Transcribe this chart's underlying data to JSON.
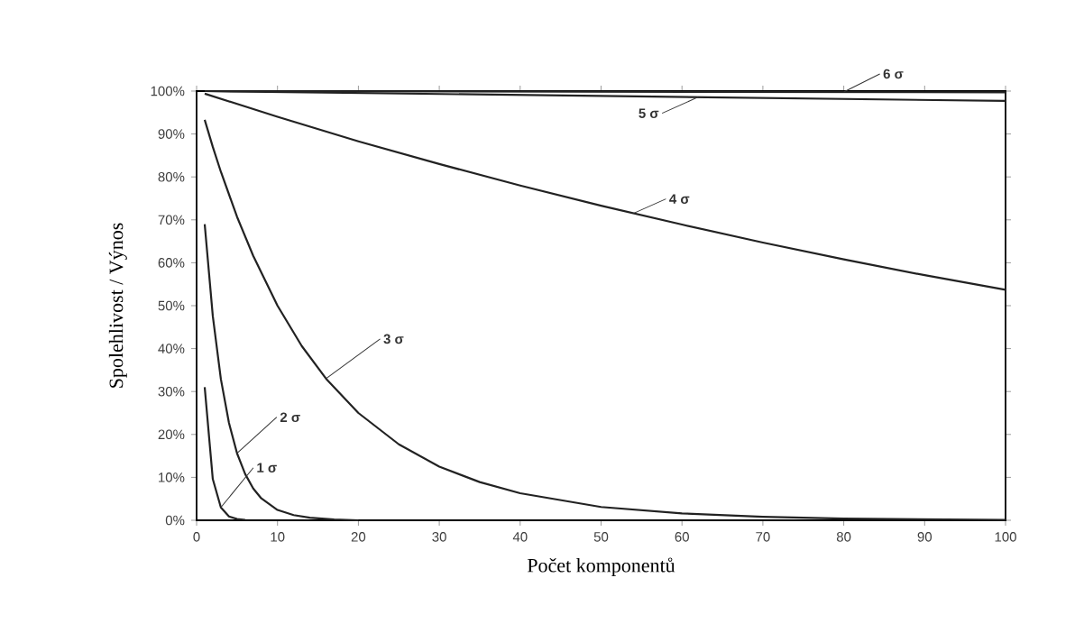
{
  "chart_data": {
    "type": "line",
    "xlabel": "Počet komponentů",
    "ylabel": "Spolehlivost / Výnos",
    "xlim": [
      0,
      100
    ],
    "ylim": [
      0,
      100
    ],
    "xticks": [
      0,
      10,
      20,
      30,
      40,
      50,
      60,
      70,
      80,
      90,
      100
    ],
    "yticks": [
      {
        "value": 0,
        "label": "0%"
      },
      {
        "value": 10,
        "label": "10%"
      },
      {
        "value": 20,
        "label": "20%"
      },
      {
        "value": 30,
        "label": "30%"
      },
      {
        "value": 40,
        "label": "40%"
      },
      {
        "value": 50,
        "label": "50%"
      },
      {
        "value": 60,
        "label": "60%"
      },
      {
        "value": 70,
        "label": "70%"
      },
      {
        "value": 80,
        "label": "80%"
      },
      {
        "value": 90,
        "label": "90%"
      },
      {
        "value": 100,
        "label": "100%"
      }
    ],
    "marker": "none",
    "line_style": "solid",
    "series": [
      {
        "color": "#222222",
        "x": [
          1,
          2,
          3,
          4,
          5,
          6
        ],
        "values": [
          31,
          9.6,
          3.0,
          0.9,
          0.3,
          0.1
        ]
      },
      {
        "color": "#222222",
        "x": [
          1,
          2,
          3,
          4,
          5,
          6,
          7,
          8,
          10,
          12,
          14,
          17,
          20
        ],
        "values": [
          69,
          47.6,
          32.9,
          22.7,
          15.6,
          10.8,
          7.4,
          5.1,
          2.4,
          1.2,
          0.6,
          0.2,
          0
        ]
      },
      {
        "color": "#222222",
        "x": [
          1,
          2,
          3,
          5,
          7,
          10,
          13,
          16,
          20,
          25,
          30,
          35,
          40,
          50,
          60,
          70,
          80,
          100
        ],
        "values": [
          93.3,
          87.0,
          81.2,
          70.7,
          61.6,
          50.0,
          40.6,
          33.0,
          25.0,
          17.7,
          12.5,
          8.9,
          6.3,
          3.1,
          1.6,
          0.8,
          0.4,
          0.1
        ]
      },
      {
        "color": "#222222",
        "x": [
          1,
          10,
          20,
          30,
          40,
          50,
          60,
          70,
          80,
          90,
          100
        ],
        "values": [
          99.4,
          94,
          88.3,
          83,
          78,
          73.3,
          68.9,
          64.7,
          60.8,
          57.1,
          53.7
        ]
      },
      {
        "color": "#222222",
        "x": [
          1,
          100
        ],
        "values": [
          100,
          97.7
        ]
      },
      {
        "color": "#222222",
        "x": [
          1,
          100
        ],
        "values": [
          100,
          99.7
        ]
      }
    ],
    "annotations": [
      {
        "text": "1 σ",
        "x": 3,
        "y": 3
      },
      {
        "text": "2 σ",
        "x": 5,
        "y": 15.6
      },
      {
        "text": "3 σ",
        "x": 16,
        "y": 33
      },
      {
        "text": "4 σ",
        "x": 54,
        "y": 71.5
      },
      {
        "text": "5 σ",
        "x": 62,
        "y": 98.6
      },
      {
        "text": "6 σ",
        "x": 80,
        "y": 99.8
      }
    ]
  }
}
